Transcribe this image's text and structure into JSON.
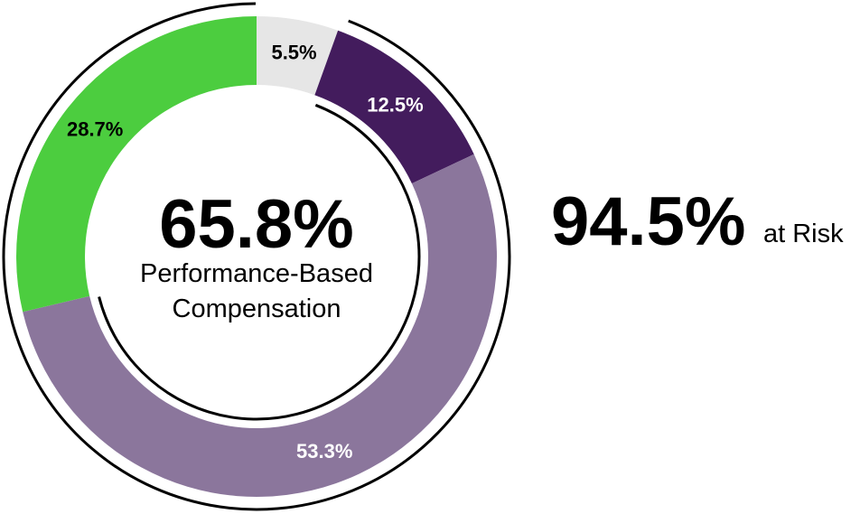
{
  "chart_data": {
    "type": "pie",
    "style": "donut",
    "slices": [
      {
        "label": "5.5%",
        "value": 5.5,
        "color": "#e6e6e6",
        "label_color": "#000000"
      },
      {
        "label": "12.5%",
        "value": 12.5,
        "color": "#431c5d",
        "label_color": "#ffffff"
      },
      {
        "label": "53.3%",
        "value": 53.3,
        "color": "#8b769c",
        "label_color": "#ffffff"
      },
      {
        "label": "28.7%",
        "value": 28.7,
        "color": "#4ccd3f",
        "label_color": "#000000"
      }
    ],
    "center": {
      "value": "65.8%",
      "caption_line1": "Performance-Based",
      "caption_line2": "Compensation"
    },
    "side": {
      "value": "94.5%",
      "caption": "at Risk"
    }
  }
}
